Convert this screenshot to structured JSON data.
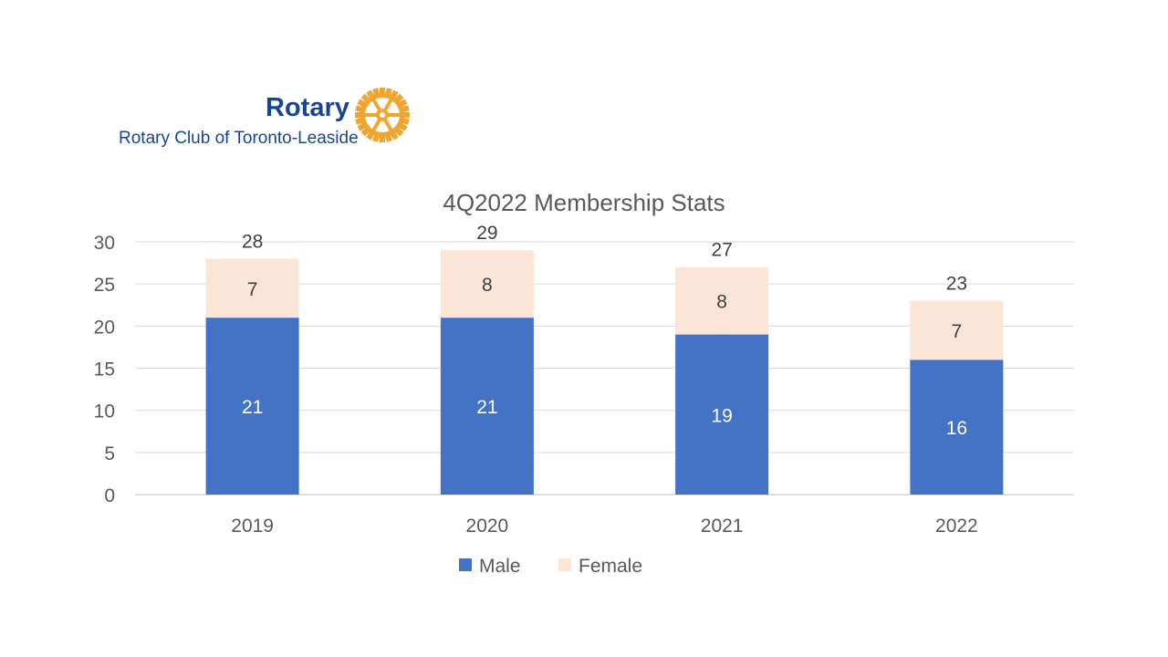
{
  "logo": {
    "wordmark": "Rotary",
    "club_name": "Rotary Club of Toronto-Leaside",
    "icon": "rotary-wheel-icon",
    "brand_blue": "#17458f",
    "brand_gold": "#f7a81b"
  },
  "chart_data": {
    "type": "bar",
    "stacked": true,
    "title": "4Q2022 Membership Stats",
    "categories": [
      "2019",
      "2020",
      "2021",
      "2022"
    ],
    "series": [
      {
        "name": "Male",
        "values": [
          21,
          21,
          19,
          16
        ],
        "color": "#4472c4"
      },
      {
        "name": "Female",
        "values": [
          7,
          8,
          8,
          7
        ],
        "color": "#fbe5d6"
      }
    ],
    "totals": [
      28,
      29,
      27,
      23
    ],
    "ylim": [
      0,
      30
    ],
    "yticks": [
      0,
      5,
      10,
      15,
      20,
      25,
      30
    ],
    "grid": true,
    "legend": "bottom"
  }
}
